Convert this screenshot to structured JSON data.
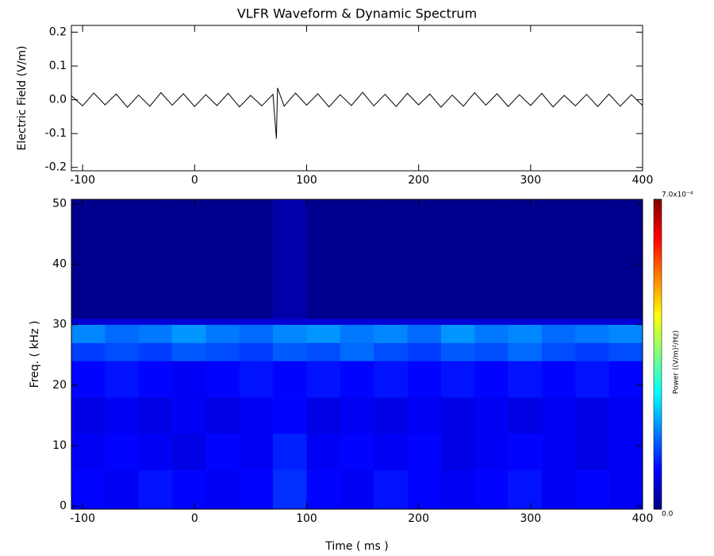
{
  "chart_data": [
    {
      "type": "line",
      "title": "VLFR Waveform & Dynamic Spectrum",
      "ylabel": "Electric Field  (V/m)",
      "color": "#000000",
      "x": [
        -110,
        -100,
        -90,
        -80,
        -70,
        -60,
        -50,
        -40,
        -30,
        -20,
        -10,
        0,
        10,
        20,
        30,
        40,
        50,
        60,
        70,
        73,
        74,
        80,
        90,
        100,
        110,
        120,
        130,
        140,
        150,
        160,
        170,
        180,
        190,
        200,
        210,
        220,
        230,
        240,
        250,
        260,
        270,
        280,
        290,
        300,
        310,
        320,
        330,
        340,
        350,
        360,
        370,
        380,
        390,
        400
      ],
      "values": [
        0.012,
        -0.018,
        0.02,
        -0.015,
        0.017,
        -0.022,
        0.014,
        -0.019,
        0.021,
        -0.016,
        0.018,
        -0.02,
        0.015,
        -0.017,
        0.019,
        -0.021,
        0.013,
        -0.018,
        0.016,
        -0.115,
        0.035,
        -0.019,
        0.02,
        -0.016,
        0.018,
        -0.021,
        0.015,
        -0.017,
        0.022,
        -0.018,
        0.016,
        -0.02,
        0.019,
        -0.015,
        0.017,
        -0.022,
        0.014,
        -0.019,
        0.021,
        -0.016,
        0.018,
        -0.02,
        0.015,
        -0.017,
        0.019,
        -0.021,
        0.013,
        -0.018,
        0.016,
        -0.02,
        0.017,
        -0.019,
        0.015,
        -0.017
      ],
      "xlim": [
        -110,
        400
      ],
      "ylim": [
        -0.21,
        0.22
      ],
      "xticks": [
        -100,
        0,
        100,
        200,
        300,
        400
      ],
      "yticks": [
        0.2,
        0.1,
        {
          "value": 0,
          "label": "0.0"
        },
        -0.1,
        -0.2
      ]
    },
    {
      "type": "heatmap",
      "xlabel": "Time ( ms )",
      "ylabel": "Freq. ( kHz )",
      "colormap": "jet",
      "x_bins": [
        -110,
        -80,
        -50,
        -20,
        10,
        40,
        70,
        100,
        130,
        160,
        190,
        220,
        250,
        280,
        310,
        340,
        370,
        400
      ],
      "y_bins": [
        -0.5,
        6,
        12,
        18,
        24,
        27,
        30,
        31,
        50.7
      ],
      "z": [
        [
          9e-05,
          8e-05,
          0.0001,
          9e-05,
          8e-05,
          9e-05,
          0.00012,
          9e-05,
          8e-05,
          0.0001,
          9e-05,
          8e-05,
          9e-05,
          0.0001,
          8e-05,
          9e-05,
          8e-05
        ],
        [
          8e-05,
          9e-05,
          8e-05,
          7e-05,
          9e-05,
          8e-05,
          0.00011,
          8e-05,
          9e-05,
          8e-05,
          9e-05,
          7e-05,
          8e-05,
          9e-05,
          8e-05,
          7e-05,
          8e-05
        ],
        [
          7e-05,
          8e-05,
          7e-05,
          8e-05,
          7e-05,
          8e-05,
          9e-05,
          7e-05,
          8e-05,
          7e-05,
          8e-05,
          7e-05,
          8e-05,
          7e-05,
          8e-05,
          7e-05,
          8e-05
        ],
        [
          9e-05,
          0.0001,
          9e-05,
          8e-05,
          9e-05,
          0.0001,
          9e-05,
          0.0001,
          9e-05,
          0.0001,
          9e-05,
          0.0001,
          9e-05,
          0.0001,
          9e-05,
          0.0001,
          9e-05
        ],
        [
          0.00013,
          0.00014,
          0.00013,
          0.00015,
          0.00014,
          0.00013,
          0.00015,
          0.00014,
          0.00016,
          0.00014,
          0.00013,
          0.00015,
          0.00014,
          0.00016,
          0.00014,
          0.00013,
          0.00014
        ],
        [
          0.00018,
          0.00016,
          0.00017,
          0.00019,
          0.00017,
          0.00016,
          0.00018,
          0.00019,
          0.00017,
          0.00018,
          0.00016,
          0.00019,
          0.00017,
          0.00018,
          0.00016,
          0.00017,
          0.00018
        ],
        [
          6e-05,
          6e-05,
          6e-05,
          6e-05,
          6e-05,
          6e-05,
          6e-05,
          6e-05,
          6e-05,
          6e-05,
          6e-05,
          6e-05,
          6e-05,
          6e-05,
          6e-05,
          6e-05,
          6e-05
        ],
        [
          1e-05,
          1e-05,
          1e-05,
          1e-05,
          1e-05,
          1e-05,
          3e-05,
          1e-05,
          1e-05,
          1e-05,
          1e-05,
          1e-05,
          1e-05,
          1e-05,
          1e-05,
          1e-05,
          1e-05
        ]
      ],
      "xlim": [
        -110,
        400
      ],
      "ylim": [
        -0.5,
        50.7
      ],
      "xticks": [
        -100,
        0,
        100,
        200,
        300,
        400
      ],
      "yticks": [
        0,
        10,
        20,
        30,
        40,
        50
      ],
      "colorbar": {
        "label": "Power  ((V/m)²/Hz)",
        "lim": [
          0,
          0.0007
        ],
        "ticks": [
          {
            "value": 0,
            "label": "0.0"
          },
          {
            "value": 0.0007,
            "label": "7.0x10⁻⁴"
          }
        ]
      }
    }
  ]
}
